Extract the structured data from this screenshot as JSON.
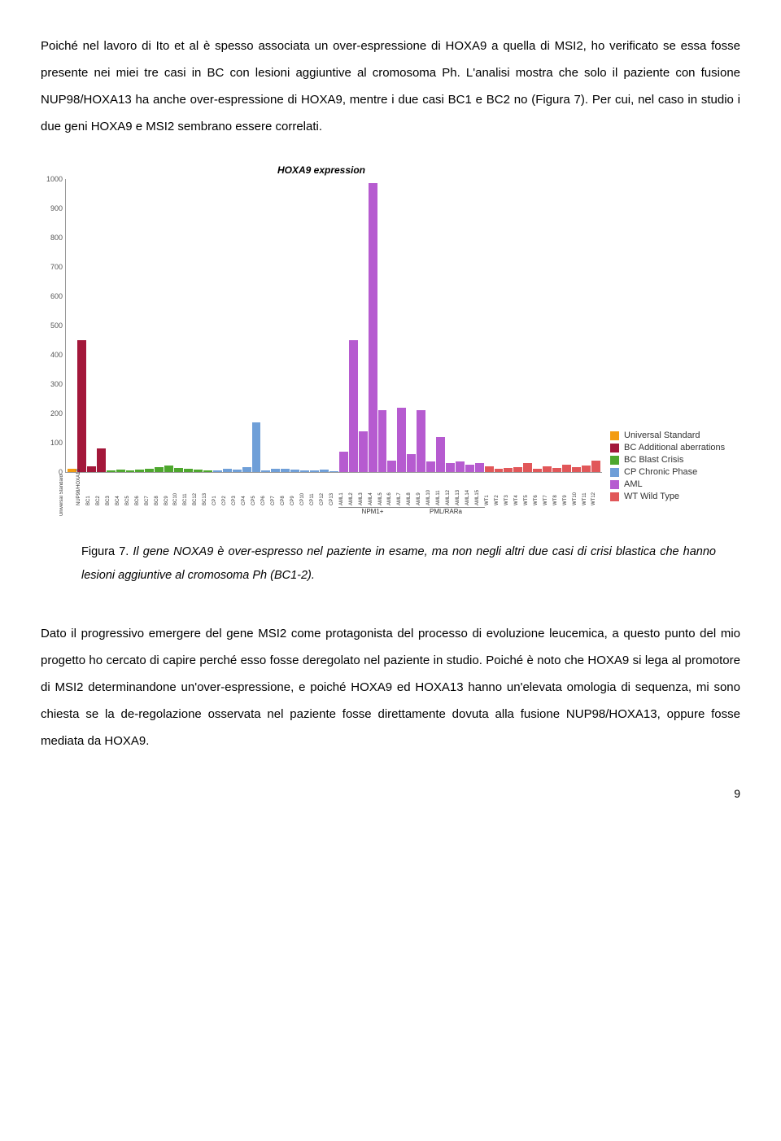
{
  "para1": "Poiché nel lavoro di Ito et al è spesso associata un over-espressione di HOXA9 a quella di MSI2, ho verificato se essa fosse presente nei miei tre casi in BC con lesioni aggiuntive al cromosoma Ph. L'analisi mostra che solo il paziente con fusione NUP98/HOXA13 ha anche over-espressione di HOXA9, mentre i due casi BC1 e BC2 no (Figura 7). Per cui, nel caso in studio i due geni HOXA9 e MSI2 sembrano essere correlati.",
  "chart": {
    "title": "HOXA9 expression",
    "ylim": [
      0,
      1000
    ],
    "ytick_step": 100,
    "background": "#ffffff",
    "axis_color": "#999999",
    "label_fontsize": 9,
    "tick_fontsize": 9,
    "series": [
      {
        "label": "Universal Standard",
        "color": "#f39c12"
      },
      {
        "label": "BC Additional aberrations",
        "color": "#a3173a"
      },
      {
        "label": "BC Blast Crisis",
        "color": "#4ea72e"
      },
      {
        "label": "CP Chronic Phase",
        "color": "#6f9fd8"
      },
      {
        "label": "AML",
        "color": "#b65bd0"
      },
      {
        "label": "WT Wild Type",
        "color": "#e15759"
      }
    ],
    "data": [
      {
        "cat": "Universal Standard",
        "label": "",
        "value": 10
      },
      {
        "cat": "NUP98/HOXA13",
        "label": "NUP98/HOXA13",
        "value": 450,
        "color": "#a3173a"
      },
      {
        "cat": "BC1",
        "label": "BC1",
        "value": 20,
        "color": "#a3173a"
      },
      {
        "cat": "BC2",
        "label": "BC2",
        "value": 80,
        "color": "#a3173a"
      },
      {
        "cat": "BC3",
        "label": "BC3",
        "value": 5,
        "color": "#4ea72e"
      },
      {
        "cat": "BC4",
        "label": "BC4",
        "value": 7,
        "color": "#4ea72e"
      },
      {
        "cat": "BC5",
        "label": "BC5",
        "value": 6,
        "color": "#4ea72e"
      },
      {
        "cat": "BC6",
        "label": "BC6",
        "value": 8,
        "color": "#4ea72e"
      },
      {
        "cat": "BC7",
        "label": "BC7",
        "value": 12,
        "color": "#4ea72e"
      },
      {
        "cat": "BC8",
        "label": "BC8",
        "value": 18,
        "color": "#4ea72e"
      },
      {
        "cat": "BC9",
        "label": "BC9",
        "value": 22,
        "color": "#4ea72e"
      },
      {
        "cat": "BC10",
        "label": "BC10",
        "value": 14,
        "color": "#4ea72e"
      },
      {
        "cat": "BC11",
        "label": "BC11",
        "value": 10,
        "color": "#4ea72e"
      },
      {
        "cat": "BC12",
        "label": "BC12",
        "value": 8,
        "color": "#4ea72e"
      },
      {
        "cat": "BC13",
        "label": "BC13",
        "value": 5,
        "color": "#4ea72e"
      },
      {
        "cat": "CP1",
        "label": "CP1",
        "value": 6,
        "color": "#6f9fd8"
      },
      {
        "cat": "CP2",
        "label": "CP2",
        "value": 10,
        "color": "#6f9fd8"
      },
      {
        "cat": "CP3",
        "label": "CP3",
        "value": 8,
        "color": "#6f9fd8"
      },
      {
        "cat": "CP4",
        "label": "CP4",
        "value": 18,
        "color": "#6f9fd8"
      },
      {
        "cat": "CP5",
        "label": "CP5",
        "value": 170,
        "color": "#6f9fd8"
      },
      {
        "cat": "CP6",
        "label": "CP6",
        "value": 6,
        "color": "#6f9fd8"
      },
      {
        "cat": "CP7",
        "label": "CP7",
        "value": 10,
        "color": "#6f9fd8"
      },
      {
        "cat": "CP8",
        "label": "CP8",
        "value": 12,
        "color": "#6f9fd8"
      },
      {
        "cat": "CP9",
        "label": "CP9",
        "value": 8,
        "color": "#6f9fd8"
      },
      {
        "cat": "CP10",
        "label": "CP10",
        "value": 6,
        "color": "#6f9fd8"
      },
      {
        "cat": "CP11",
        "label": "CP11",
        "value": 5,
        "color": "#6f9fd8"
      },
      {
        "cat": "CP12",
        "label": "CP12",
        "value": 7,
        "color": "#6f9fd8"
      },
      {
        "cat": "CP13",
        "label": "CP13",
        "value": 4,
        "color": "#6f9fd8"
      },
      {
        "cat": "AML1",
        "label": "AML1",
        "value": 70,
        "color": "#b65bd0"
      },
      {
        "cat": "AML2",
        "label": "AML2",
        "value": 450,
        "color": "#b65bd0"
      },
      {
        "cat": "AML3",
        "label": "AML3",
        "value": 140,
        "color": "#b65bd0"
      },
      {
        "cat": "AML4",
        "label": "AML4",
        "value": 985,
        "color": "#b65bd0"
      },
      {
        "cat": "AML5",
        "label": "AML5",
        "value": 210,
        "color": "#b65bd0"
      },
      {
        "cat": "AML6",
        "label": "AML6",
        "value": 40,
        "color": "#b65bd0"
      },
      {
        "cat": "AML7",
        "label": "AML7",
        "value": 220,
        "color": "#b65bd0"
      },
      {
        "cat": "AML8",
        "label": "AML8",
        "value": 60,
        "color": "#b65bd0"
      },
      {
        "cat": "AML9",
        "label": "AML9",
        "value": 210,
        "color": "#b65bd0"
      },
      {
        "cat": "AML10",
        "label": "AML10",
        "value": 35,
        "color": "#b65bd0"
      },
      {
        "cat": "AML11",
        "label": "AML11",
        "value": 120,
        "color": "#b65bd0"
      },
      {
        "cat": "AML12",
        "label": "AML12",
        "value": 30,
        "color": "#b65bd0"
      },
      {
        "cat": "AML13",
        "label": "AML13",
        "value": 35,
        "color": "#b65bd0"
      },
      {
        "cat": "AML14",
        "label": "AML14",
        "value": 25,
        "color": "#b65bd0"
      },
      {
        "cat": "AML15",
        "label": "AML15",
        "value": 30,
        "color": "#b65bd0"
      },
      {
        "cat": "WT1",
        "label": "WT1",
        "value": 20,
        "color": "#e15759"
      },
      {
        "cat": "WT2",
        "label": "WT2",
        "value": 12,
        "color": "#e15759"
      },
      {
        "cat": "WT3",
        "label": "WT3",
        "value": 15,
        "color": "#e15759"
      },
      {
        "cat": "WT4",
        "label": "WT4",
        "value": 18,
        "color": "#e15759"
      },
      {
        "cat": "WT5",
        "label": "WT5",
        "value": 30,
        "color": "#e15759"
      },
      {
        "cat": "WT6",
        "label": "WT6",
        "value": 12,
        "color": "#e15759"
      },
      {
        "cat": "WT7",
        "label": "WT7",
        "value": 20,
        "color": "#e15759"
      },
      {
        "cat": "WT8",
        "label": "WT8",
        "value": 15,
        "color": "#e15759"
      },
      {
        "cat": "WT9",
        "label": "WT9",
        "value": 25,
        "color": "#e15759"
      },
      {
        "cat": "WT10",
        "label": "WT10",
        "value": 18,
        "color": "#e15759"
      },
      {
        "cat": "WT11",
        "label": "WT11",
        "value": 22,
        "color": "#e15759"
      },
      {
        "cat": "WT12",
        "label": "WT12",
        "value": 40,
        "color": "#e15759"
      }
    ],
    "sublabels": [
      {
        "text": "NPM1+",
        "start": 28,
        "end": 35
      },
      {
        "text": "PML/RARa",
        "start": 35,
        "end": 43
      }
    ],
    "first_bar_axis_label": "Universal Standard"
  },
  "caption_prefix": "Figura 7. ",
  "caption_text": "Il gene NOXA9 è over-espresso nel paziente in esame, ma non negli altri due casi di crisi blastica che hanno lesioni aggiuntive al cromosoma Ph (BC1-2).",
  "para2": "Dato il progressivo emergere del gene MSI2 come protagonista del processo di evoluzione leucemica, a questo punto del mio progetto ho cercato di capire perché esso fosse deregolato nel paziente in studio. Poiché è noto che HOXA9 si lega al promotore di MSI2 determinandone un'over-espressione, e poiché HOXA9 ed HOXA13 hanno un'elevata omologia di sequenza, mi sono chiesta se la de-regolazione osservata nel paziente fosse direttamente dovuta alla fusione NUP98/HOXA13, oppure fosse mediata da HOXA9.",
  "page_number": "9"
}
